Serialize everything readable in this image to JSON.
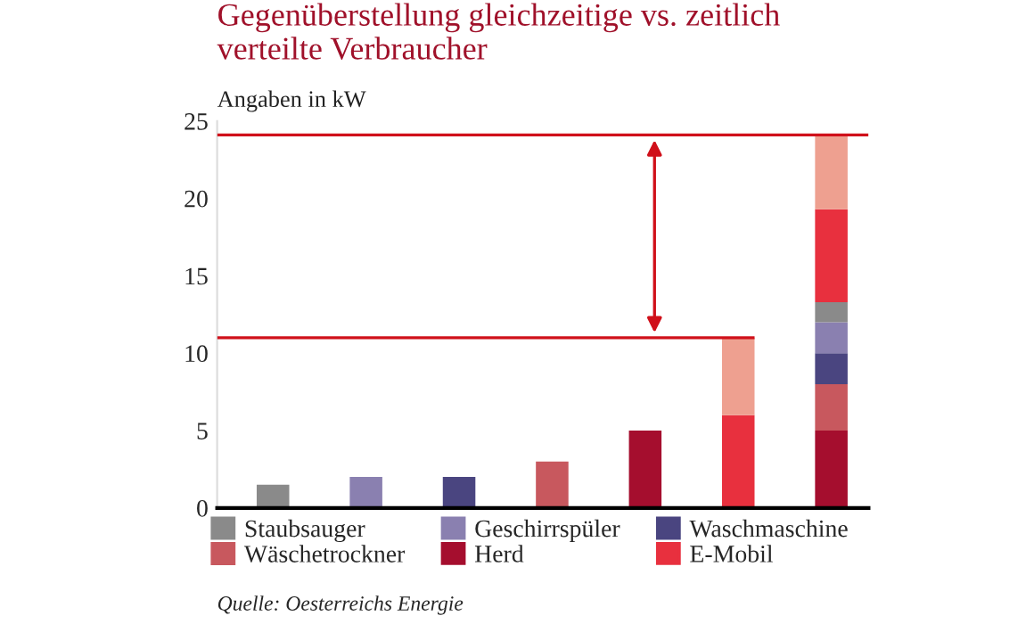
{
  "chart_data": {
    "type": "bar",
    "title": "Gegenüberstellung gleichzeitige vs. zeitlich\nverteilte Verbraucher",
    "subtitle": "Angaben in kW",
    "categories": [
      null,
      null,
      null,
      null,
      null,
      null,
      null
    ],
    "stacked": true,
    "series": [
      {
        "name": "Herd",
        "color": "#a50e2e",
        "values": [
          null,
          null,
          null,
          null,
          5,
          null,
          5
        ]
      },
      {
        "name": "Wäschetrockner",
        "color": "#c8585e",
        "values": [
          null,
          null,
          null,
          3,
          null,
          null,
          3
        ]
      },
      {
        "name": "Waschmaschine",
        "color": "#4a4580",
        "values": [
          null,
          null,
          2,
          null,
          null,
          null,
          2
        ]
      },
      {
        "name": "Geschirrspüler",
        "color": "#8a80b0",
        "values": [
          null,
          2,
          null,
          null,
          null,
          null,
          2
        ]
      },
      {
        "name": "Staubsauger",
        "color": "#8a8a8a",
        "values": [
          1.5,
          null,
          null,
          null,
          null,
          null,
          1.3
        ]
      },
      {
        "name": "E-Mobil",
        "color": "#e8303e",
        "values": [
          null,
          null,
          null,
          null,
          null,
          6,
          6
        ]
      },
      {
        "color": "#eea090",
        "values": [
          null,
          null,
          null,
          null,
          null,
          5,
          4.8
        ]
      }
    ],
    "ylim": [
      0,
      25
    ],
    "yticks": [
      0,
      5,
      10,
      15,
      20,
      25
    ],
    "grid": false,
    "legend": "bottom",
    "ref_lines": [
      {
        "axis": "y",
        "value": 11,
        "color": "#d0101a"
      },
      {
        "axis": "y",
        "value": 24.1,
        "color": "#d0101a"
      }
    ],
    "annotations": [
      "Quelle: Oesterreichs Energie"
    ]
  }
}
